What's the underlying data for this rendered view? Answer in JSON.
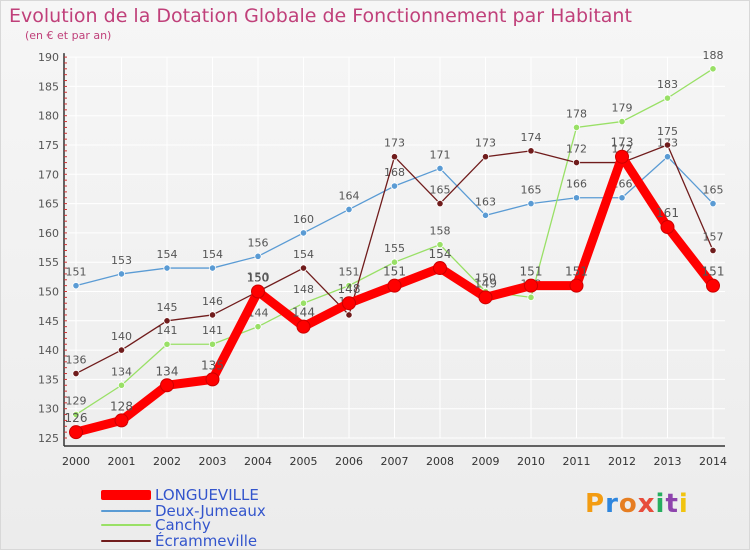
{
  "chart_data": {
    "type": "line",
    "title": "Evolution de la Dotation Globale de Fonctionnement par Habitant",
    "subtitle": "(en € et par an)",
    "x": [
      "2000",
      "2001",
      "2002",
      "2003",
      "2004",
      "2005",
      "2006",
      "2007",
      "2008",
      "2009",
      "2010",
      "2011",
      "2012",
      "2013",
      "2014"
    ],
    "ylim": [
      125,
      190
    ],
    "yticks": [
      125,
      130,
      135,
      140,
      145,
      150,
      155,
      160,
      165,
      170,
      175,
      180,
      185,
      190
    ],
    "series": [
      {
        "name": "LONGUEVILLE",
        "color": "#ff0000",
        "values": [
          126,
          128,
          134,
          135,
          150,
          144,
          148,
          151,
          154,
          149,
          151,
          151,
          173,
          161,
          151
        ]
      },
      {
        "name": "Deux-Jumeaux",
        "color": "#5a9bd4",
        "values": [
          151,
          153,
          154,
          154,
          156,
          160,
          164,
          168,
          171,
          163,
          165,
          166,
          166,
          173,
          165
        ]
      },
      {
        "name": "Canchy",
        "color": "#99e066",
        "values": [
          129,
          134,
          141,
          141,
          144,
          148,
          151,
          155,
          158,
          150,
          149,
          178,
          179,
          183,
          188
        ]
      },
      {
        "name": "Écrammeville",
        "color": "#701c1c",
        "values": [
          136,
          140,
          145,
          146,
          150,
          154,
          146,
          173,
          165,
          173,
          174,
          172,
          172,
          175,
          157
        ]
      }
    ],
    "legend_position": "bottom-left"
  },
  "branding": {
    "logo_letters": [
      "P",
      "r",
      "o",
      "x",
      "i",
      "t",
      "i"
    ],
    "logo_colors": [
      "#f39c12",
      "#2e86de",
      "#e67e22",
      "#e74c3c",
      "#27ae60",
      "#8e44ad",
      "#f1c40f"
    ]
  }
}
